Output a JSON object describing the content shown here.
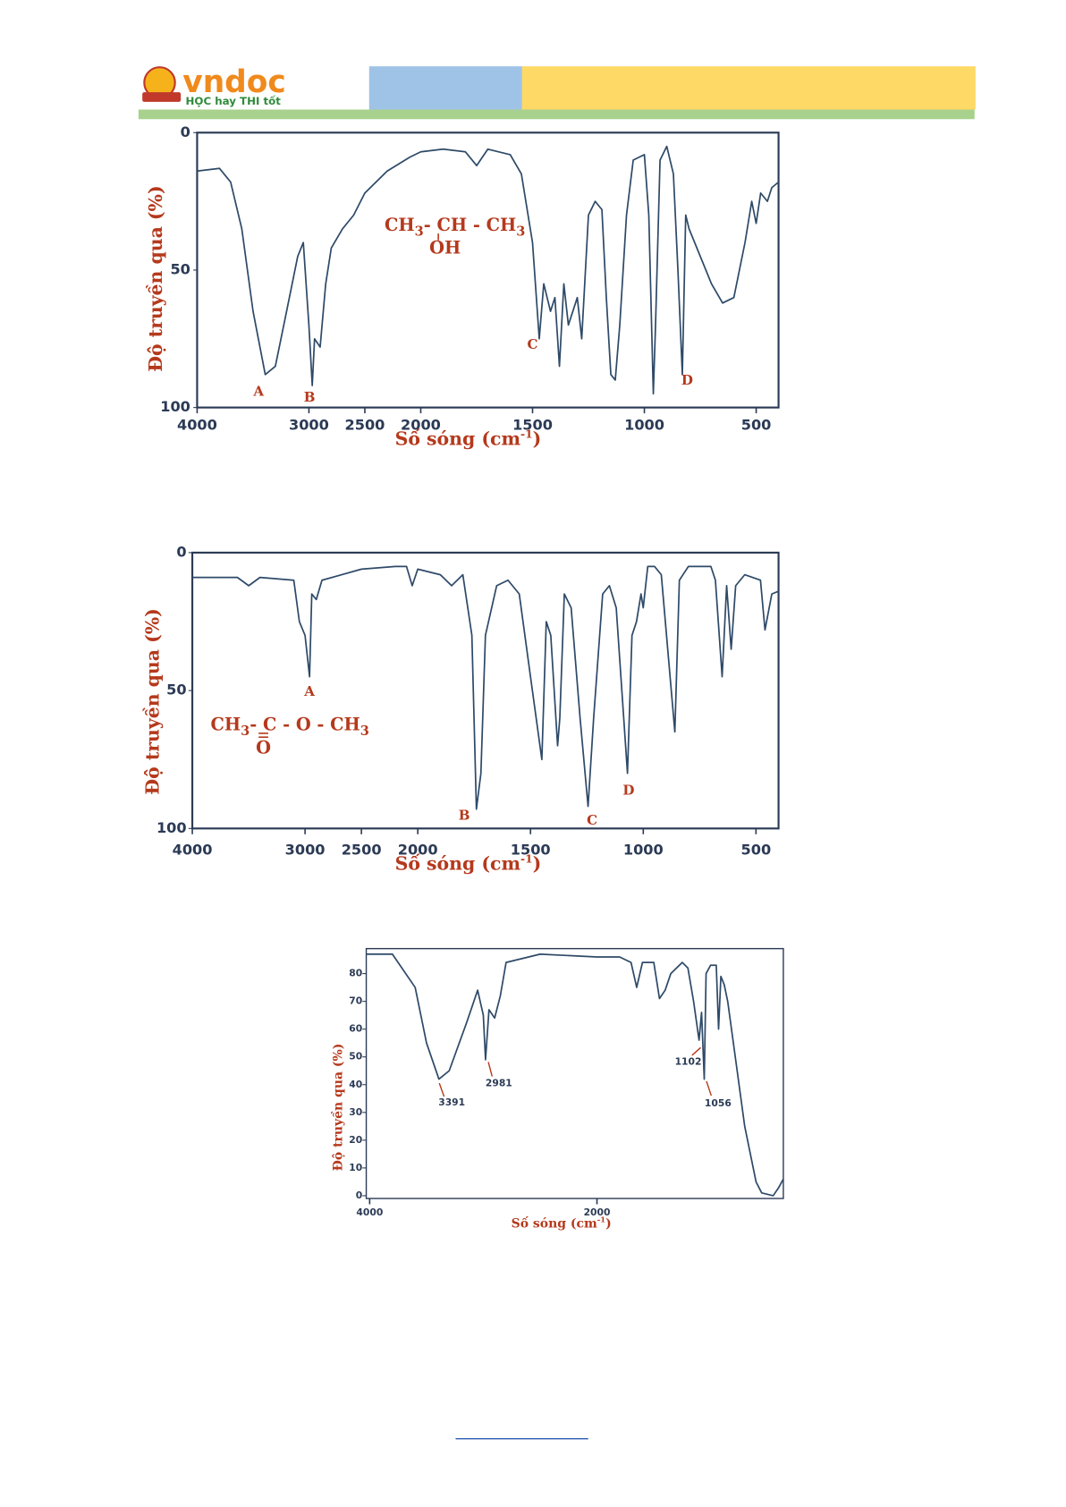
{
  "header": {
    "logo": "vndoc",
    "slogan": "HỌC hay THI tốt"
  },
  "chart_data": [
    {
      "type": "line",
      "color": "#2e4a68",
      "ylabel": "Độ truyền qua (%)",
      "xlabel": [
        "Số sóng (cm",
        "-1",
        ")"
      ],
      "formula": [
        "CH",
        "3",
        "- CH - CH",
        "3"
      ],
      "formula_group": "OH",
      "annotations": [
        "A",
        "B",
        "C",
        "D"
      ],
      "xlim": [
        4000,
        400
      ],
      "xscale_change": {
        "at": 2000,
        "factor": 2
      },
      "xticks": [
        4000,
        3000,
        2500,
        2000,
        1500,
        1000,
        500
      ],
      "ylim": [
        100,
        0
      ],
      "yticks": [
        0,
        50,
        100
      ],
      "x": [
        4000,
        3800,
        3700,
        3600,
        3500,
        3391,
        3300,
        3200,
        3100,
        3050,
        3000,
        2970,
        2950,
        2900,
        2850,
        2800,
        2700,
        2600,
        2500,
        2300,
        2100,
        2000,
        1900,
        1800,
        1750,
        1700,
        1600,
        1550,
        1500,
        1470,
        1450,
        1420,
        1400,
        1380,
        1360,
        1340,
        1300,
        1280,
        1250,
        1220,
        1190,
        1170,
        1150,
        1130,
        1110,
        1080,
        1050,
        1000,
        980,
        960,
        950,
        930,
        900,
        870,
        850,
        830,
        815,
        800,
        700,
        650,
        600,
        550,
        520,
        500,
        480,
        450,
        430,
        400
      ],
      "values": [
        14,
        13,
        18,
        35,
        65,
        88,
        85,
        65,
        45,
        40,
        70,
        92,
        75,
        78,
        55,
        42,
        35,
        30,
        22,
        14,
        9,
        7,
        6,
        7,
        12,
        6,
        8,
        15,
        40,
        75,
        55,
        65,
        60,
        85,
        55,
        70,
        60,
        75,
        30,
        25,
        28,
        60,
        88,
        90,
        70,
        30,
        10,
        8,
        30,
        95,
        70,
        10,
        5,
        15,
        50,
        88,
        30,
        35,
        55,
        62,
        60,
        40,
        25,
        33,
        22,
        25,
        20,
        18
      ]
    },
    {
      "type": "line",
      "color": "#2e4a68",
      "ylabel": "Độ truyền qua (%)",
      "xlabel": [
        "Số sóng (cm",
        "-1",
        ")"
      ],
      "formula": [
        "CH",
        "3",
        "- C - O - CH",
        "3"
      ],
      "formula_group": "O",
      "annotations": [
        "A",
        "B",
        "C",
        "D"
      ],
      "xlim": [
        4000,
        400
      ],
      "xscale_change": {
        "at": 2000,
        "factor": 2
      },
      "xticks": [
        4000,
        3000,
        2500,
        2000,
        1500,
        1000,
        500
      ],
      "ylim": [
        100,
        0
      ],
      "yticks": [
        0,
        50,
        100
      ],
      "x": [
        4000,
        3600,
        3500,
        3400,
        3100,
        3050,
        3000,
        2960,
        2940,
        2900,
        2850,
        2500,
        2200,
        2100,
        2050,
        2000,
        1900,
        1850,
        1800,
        1760,
        1740,
        1720,
        1700,
        1650,
        1600,
        1550,
        1500,
        1450,
        1430,
        1410,
        1380,
        1370,
        1350,
        1320,
        1280,
        1245,
        1220,
        1180,
        1150,
        1120,
        1070,
        1050,
        1030,
        1010,
        1000,
        980,
        950,
        920,
        860,
        840,
        800,
        700,
        680,
        650,
        630,
        610,
        590,
        550,
        480,
        460,
        430,
        400
      ],
      "values": [
        9,
        9,
        12,
        9,
        10,
        25,
        30,
        45,
        15,
        17,
        10,
        6,
        5,
        5,
        12,
        6,
        8,
        12,
        8,
        30,
        93,
        80,
        30,
        12,
        10,
        15,
        45,
        75,
        25,
        30,
        70,
        60,
        15,
        20,
        60,
        92,
        60,
        15,
        12,
        20,
        80,
        30,
        25,
        15,
        20,
        5,
        5,
        8,
        65,
        10,
        5,
        5,
        10,
        45,
        12,
        35,
        12,
        8,
        10,
        28,
        15,
        14
      ]
    },
    {
      "type": "line",
      "color": "#2e4a68",
      "ylabel": "Độ truyền qua (%)",
      "xlabel": [
        "Số sóng (cm",
        "-1",
        ")"
      ],
      "annotations": [
        3391,
        2981,
        1102,
        1056
      ],
      "xlim": [
        4030,
        360
      ],
      "xticks": [
        4000,
        2000
      ],
      "ylim": [
        -1,
        89
      ],
      "yticks": [
        0,
        10,
        20,
        30,
        40,
        50,
        60,
        70,
        80
      ],
      "x": [
        4030,
        3800,
        3600,
        3500,
        3391,
        3300,
        3150,
        3050,
        3000,
        2981,
        2950,
        2900,
        2850,
        2800,
        2500,
        2000,
        1800,
        1700,
        1650,
        1600,
        1500,
        1450,
        1400,
        1350,
        1300,
        1250,
        1200,
        1150,
        1102,
        1080,
        1056,
        1040,
        1000,
        950,
        930,
        910,
        880,
        850,
        800,
        700,
        600,
        550,
        450,
        400,
        360
      ],
      "values": [
        87,
        87,
        75,
        55,
        42,
        45,
        62,
        74,
        65,
        49,
        67,
        64,
        72,
        84,
        87,
        86,
        86,
        84,
        75,
        84,
        84,
        71,
        74,
        80,
        82,
        84,
        82,
        70,
        56,
        66,
        42,
        80,
        83,
        83,
        60,
        79,
        76,
        70,
        55,
        25,
        5,
        1,
        0,
        3,
        6
      ]
    }
  ]
}
